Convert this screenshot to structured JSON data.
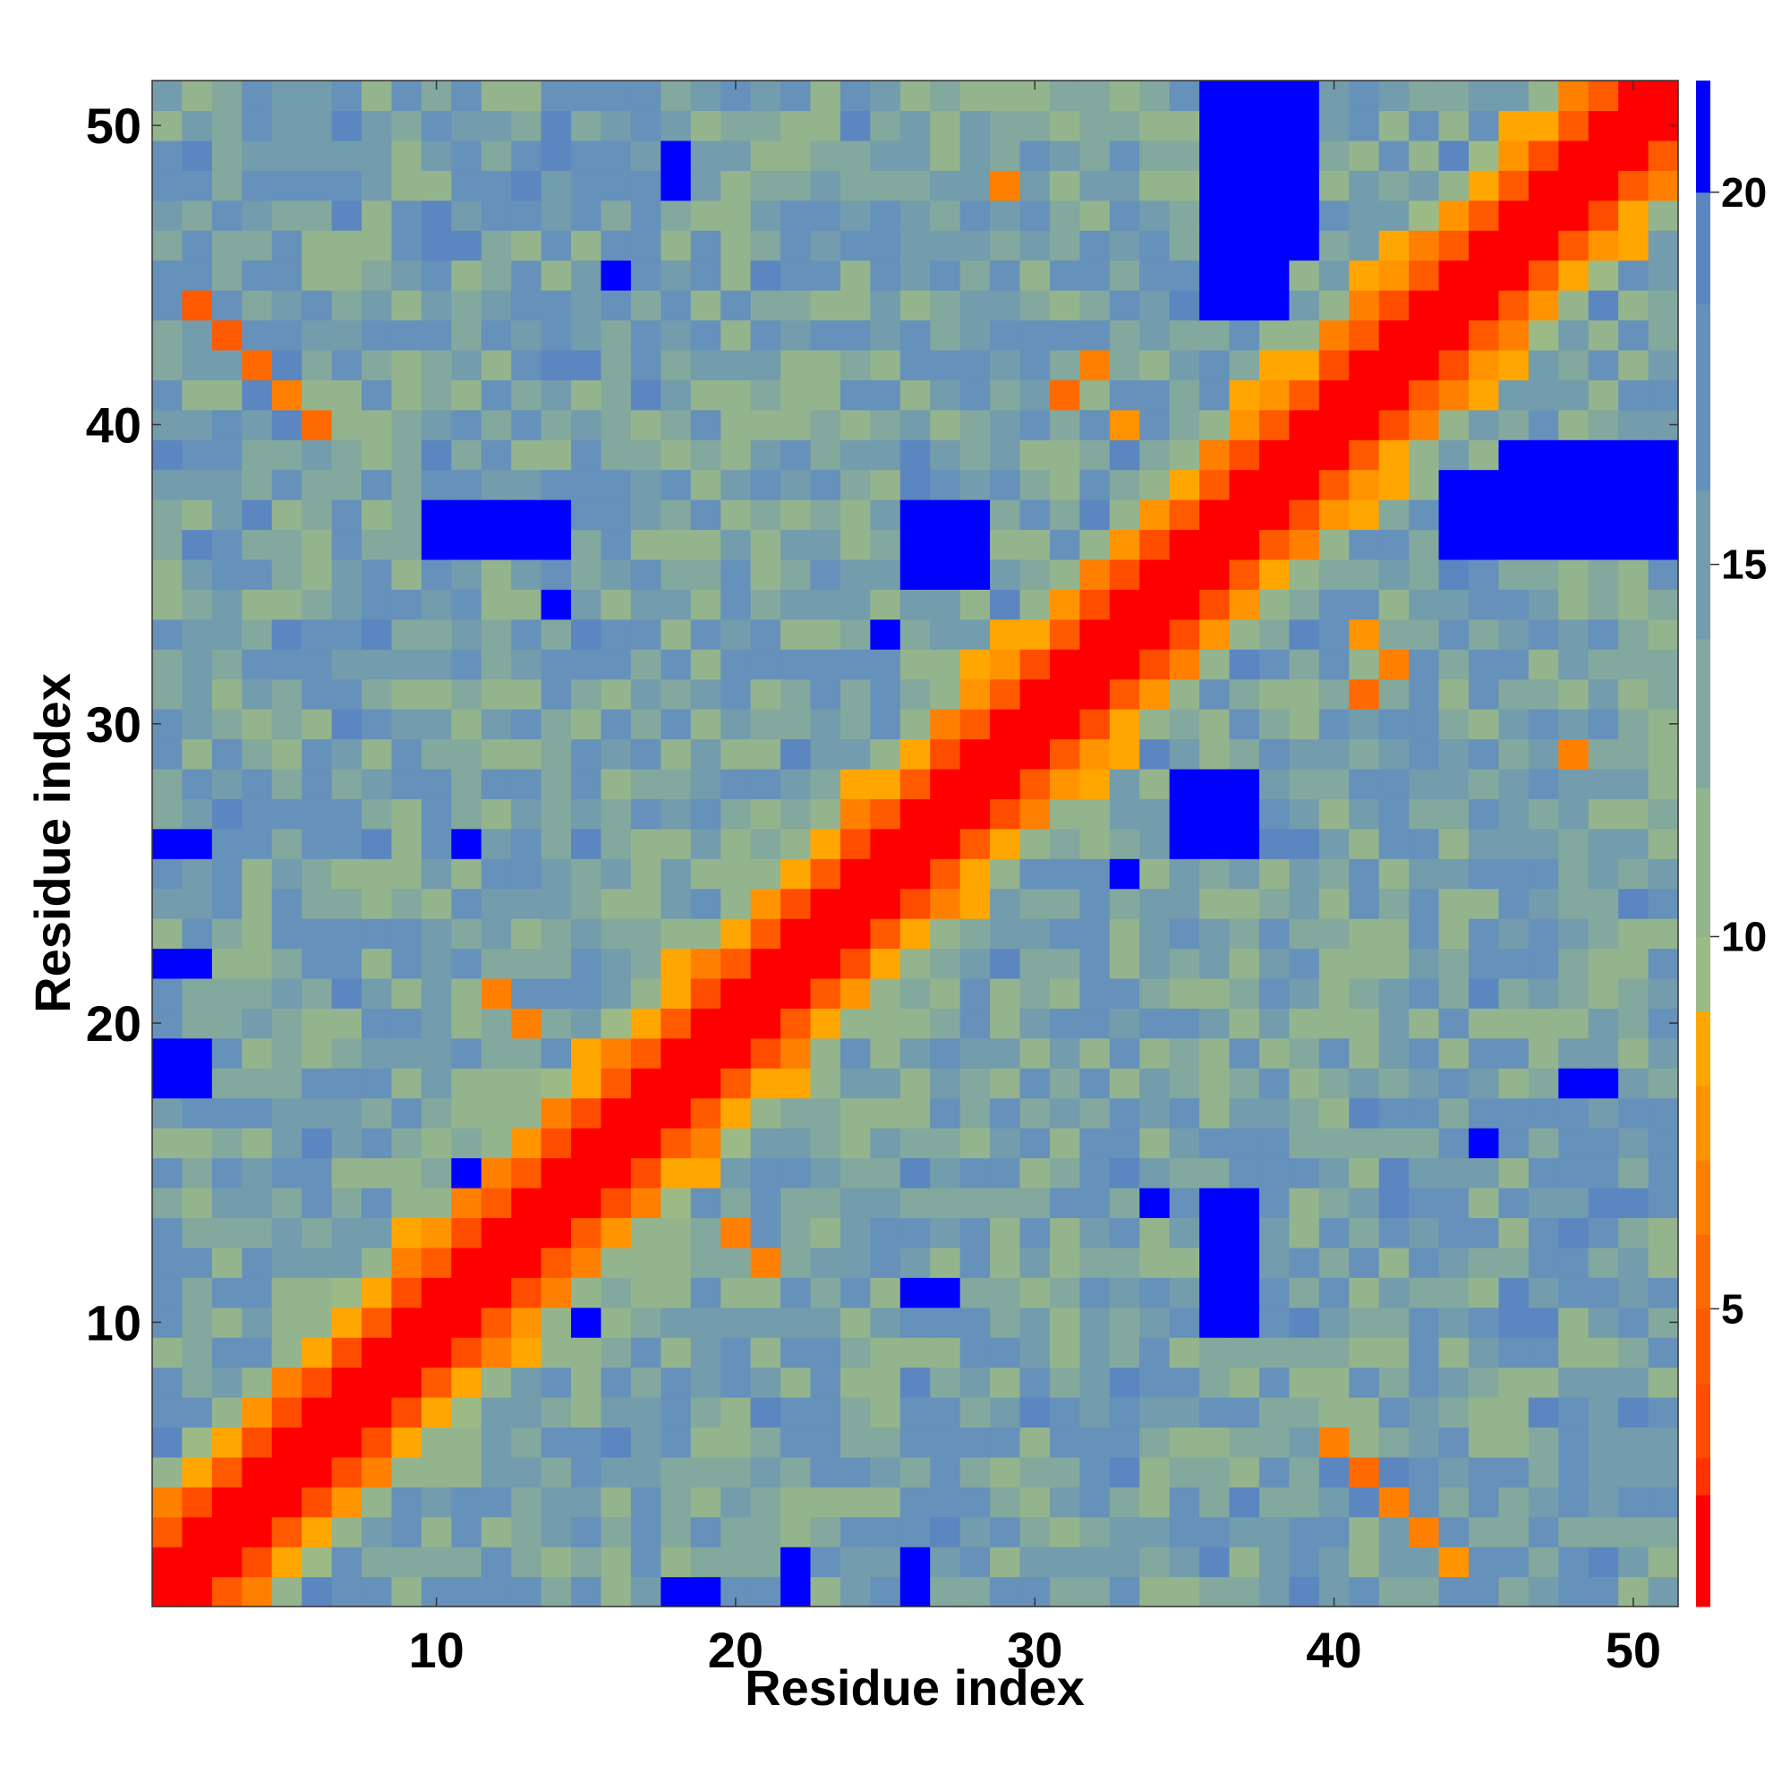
{
  "chart_data": {
    "type": "heatmap",
    "title": "",
    "xlabel": "Residue index",
    "ylabel": "Residue index",
    "n_residues": 51,
    "xlim": [
      0.5,
      51.5
    ],
    "ylim": [
      0.5,
      51.5
    ],
    "x_ticks": [
      10,
      20,
      30,
      40,
      50
    ],
    "y_ticks": [
      10,
      20,
      30,
      40,
      50
    ],
    "colorbar": {
      "range": [
        1,
        21.5
      ],
      "ticks": [
        5,
        10,
        15,
        20
      ],
      "bands": [
        {
          "from": 1.0,
          "to": 2.5,
          "color": "#ff0000"
        },
        {
          "from": 2.5,
          "to": 3.0,
          "color": "#ff3300"
        },
        {
          "from": 3.0,
          "to": 4.0,
          "color": "#ff4d00"
        },
        {
          "from": 4.0,
          "to": 5.0,
          "color": "#ff5a00"
        },
        {
          "from": 5.0,
          "to": 6.0,
          "color": "#ff6a00"
        },
        {
          "from": 6.0,
          "to": 7.0,
          "color": "#ff8000"
        },
        {
          "from": 7.0,
          "to": 8.0,
          "color": "#ff9400"
        },
        {
          "from": 8.0,
          "to": 9.0,
          "color": "#ffa600"
        },
        {
          "from": 9.0,
          "to": 10.0,
          "color": "#9cba86"
        },
        {
          "from": 10.0,
          "to": 12.0,
          "color": "#94b48e"
        },
        {
          "from": 12.0,
          "to": 14.0,
          "color": "#83a89e"
        },
        {
          "from": 14.0,
          "to": 16.0,
          "color": "#739cad"
        },
        {
          "from": 16.0,
          "to": 18.5,
          "color": "#6691bb"
        },
        {
          "from": 18.5,
          "to": 20.0,
          "color": "#5b86c0"
        },
        {
          "from": 20.0,
          "to": 21.5,
          "color": "#0000ff"
        }
      ]
    },
    "matrix_description": "symmetric pairwise residue distance matrix, low values along the diagonal",
    "long_range_contacts": [
      {
        "i": 2,
        "j": 44,
        "value": 7
      },
      {
        "i": 3,
        "j": 43,
        "value": 6
      },
      {
        "i": 4,
        "j": 42,
        "value": 6
      },
      {
        "i": 5,
        "j": 41,
        "value": 5
      },
      {
        "i": 6,
        "j": 40,
        "value": 6
      },
      {
        "i": 42,
        "j": 4,
        "value": 5
      },
      {
        "i": 43,
        "j": 3,
        "value": 4
      },
      {
        "i": 44,
        "j": 2,
        "value": 4
      },
      {
        "i": 41,
        "j": 5,
        "value": 6
      },
      {
        "i": 40,
        "j": 6,
        "value": 5
      },
      {
        "i": 31,
        "j": 41,
        "value": 5
      },
      {
        "i": 32,
        "j": 42,
        "value": 6
      },
      {
        "i": 33,
        "j": 41,
        "value": 7
      },
      {
        "i": 41,
        "j": 31,
        "value": 5
      },
      {
        "i": 42,
        "j": 32,
        "value": 6
      },
      {
        "i": 40,
        "j": 33,
        "value": 7
      },
      {
        "i": 12,
        "j": 21,
        "value": 6
      },
      {
        "i": 13,
        "j": 20,
        "value": 6
      },
      {
        "i": 21,
        "j": 12,
        "value": 6
      },
      {
        "i": 20,
        "j": 13,
        "value": 6
      },
      {
        "i": 48,
        "j": 29,
        "value": 6
      },
      {
        "i": 29,
        "j": 48,
        "value": 6
      }
    ],
    "far_blocks": [
      {
        "i_from": 36,
        "i_to": 39,
        "j_from": 48,
        "j_to": 51,
        "value": 21
      },
      {
        "i_from": 36,
        "i_to": 39,
        "j_from": 46,
        "j_to": 49,
        "value": 21
      },
      {
        "i_from": 48,
        "i_to": 51,
        "j_from": 36,
        "j_to": 39,
        "value": 21
      },
      {
        "i_from": 46,
        "i_to": 49,
        "j_from": 36,
        "j_to": 39,
        "value": 21
      },
      {
        "i_from": 11,
        "i_to": 14,
        "j_from": 36,
        "j_to": 37,
        "value": 21
      },
      {
        "i_from": 36,
        "i_to": 37,
        "j_from": 11,
        "j_to": 14,
        "value": 21
      },
      {
        "i_from": 26,
        "i_to": 28,
        "j_from": 35,
        "j_to": 37,
        "value": 21
      },
      {
        "i_from": 35,
        "i_to": 37,
        "j_from": 26,
        "j_to": 28,
        "value": 21
      },
      {
        "i_from": 1,
        "i_to": 2,
        "j_from": 26,
        "j_to": 26,
        "value": 21
      },
      {
        "i_from": 1,
        "i_to": 2,
        "j_from": 22,
        "j_to": 22,
        "value": 21
      },
      {
        "i_from": 1,
        "i_to": 1,
        "j_from": 18,
        "j_to": 19,
        "value": 21
      },
      {
        "i_from": 18,
        "i_to": 19,
        "j_from": 1,
        "j_to": 2,
        "value": 21
      },
      {
        "i_from": 26,
        "i_to": 26,
        "j_from": 1,
        "j_to": 2,
        "value": 21
      },
      {
        "i_from": 22,
        "i_to": 22,
        "j_from": 1,
        "j_to": 2,
        "value": 21
      },
      {
        "i_from": 36,
        "i_to": 37,
        "j_from": 10,
        "j_to": 14,
        "value": 21
      },
      {
        "i_from": 10,
        "i_to": 14,
        "j_from": 36,
        "j_to": 37,
        "value": 21
      },
      {
        "i_from": 36,
        "i_to": 37,
        "j_from": 26,
        "j_to": 28,
        "value": 21
      },
      {
        "i_from": 44,
        "i_to": 46,
        "j_from": 36,
        "j_to": 38,
        "value": 21
      },
      {
        "i_from": 36,
        "i_to": 38,
        "j_from": 44,
        "j_to": 46,
        "value": 21
      },
      {
        "i_from": 48,
        "i_to": 49,
        "j_from": 18,
        "j_to": 18,
        "value": 21
      },
      {
        "i_from": 18,
        "i_to": 18,
        "j_from": 48,
        "j_to": 49,
        "value": 21
      },
      {
        "i_from": 16,
        "i_to": 16,
        "j_from": 45,
        "j_to": 45,
        "value": 21
      },
      {
        "i_from": 45,
        "i_to": 45,
        "j_from": 16,
        "j_to": 16,
        "value": 21
      },
      {
        "i_from": 51,
        "i_to": 51,
        "j_from": 36,
        "j_to": 38,
        "value": 21
      },
      {
        "i_from": 26,
        "i_to": 26,
        "j_from": 11,
        "j_to": 11,
        "value": 21
      },
      {
        "i_from": 11,
        "i_to": 11,
        "j_from": 26,
        "j_to": 27,
        "value": 21
      },
      {
        "i_from": 10,
        "i_to": 10,
        "j_from": 15,
        "j_to": 15,
        "value": 21
      },
      {
        "i_from": 15,
        "i_to": 15,
        "j_from": 11,
        "j_to": 11,
        "value": 21
      },
      {
        "i_from": 33,
        "i_to": 33,
        "j_from": 25,
        "j_to": 25,
        "value": 21
      },
      {
        "i_from": 25,
        "i_to": 25,
        "j_from": 33,
        "j_to": 33,
        "value": 21
      },
      {
        "i_from": 34,
        "i_to": 34,
        "j_from": 14,
        "j_to": 14,
        "value": 21
      },
      {
        "i_from": 14,
        "i_to": 14,
        "j_from": 34,
        "j_to": 34,
        "value": 21
      }
    ]
  }
}
